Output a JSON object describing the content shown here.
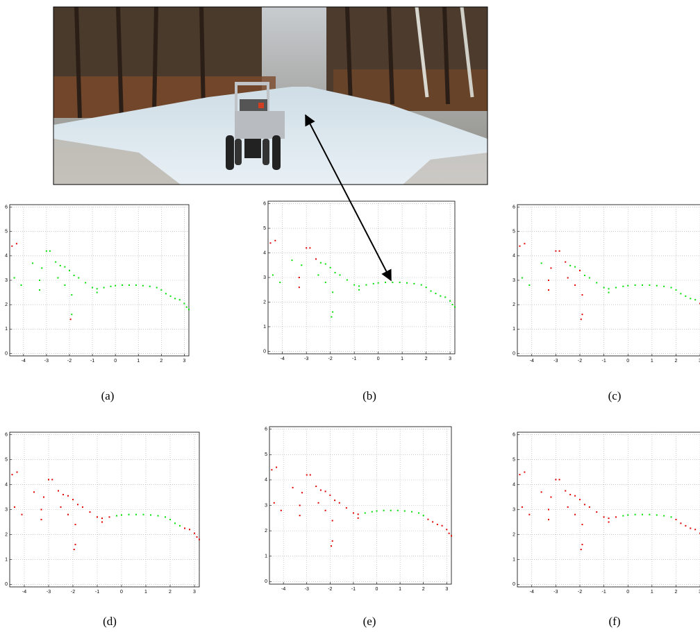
{
  "chart_data": [
    {
      "type": "scatter",
      "caption": "(a)",
      "xlim": [
        -4.6,
        3.2
      ],
      "ylim": [
        -0.1,
        6.1
      ],
      "xticks": [
        -4,
        -3,
        -2,
        -1,
        0,
        1,
        2,
        3
      ],
      "yticks": [
        0,
        1,
        2,
        3,
        4,
        5,
        6
      ],
      "grid": true,
      "series": [
        {
          "color": "#00e000",
          "x": [
            -4.4,
            -4.1,
            -3.6,
            -3.3,
            -3.2,
            -3.0,
            -2.85,
            -2.6,
            -2.4,
            -2.2,
            -2.0,
            -1.8,
            -1.6,
            -1.3,
            -1.0,
            -2.5,
            -2.2,
            -1.9,
            -3.3,
            -0.8,
            -1.9,
            -0.8,
            -0.5,
            -0.2,
            0,
            0.3,
            0.6,
            0.9,
            1.2,
            1.5,
            1.8,
            2.0,
            2.2,
            2.4,
            2.6,
            2.8,
            3.0,
            3.1,
            3.2
          ],
          "values": [
            3.1,
            2.8,
            3.7,
            3.0,
            3.5,
            4.2,
            4.2,
            3.75,
            3.6,
            3.55,
            3.4,
            3.2,
            3.1,
            2.9,
            2.7,
            3.1,
            2.8,
            1.6,
            2.6,
            2.5,
            2.4,
            2.65,
            2.7,
            2.75,
            2.78,
            2.8,
            2.8,
            2.8,
            2.78,
            2.75,
            2.7,
            2.6,
            2.45,
            2.35,
            2.25,
            2.2,
            2.05,
            1.9,
            1.8
          ]
        },
        {
          "color": "#e00000",
          "x": [
            -4.5,
            -4.3,
            -1.95
          ],
          "values": [
            4.4,
            4.5,
            1.4
          ]
        }
      ]
    },
    {
      "type": "scatter",
      "caption": "(b)",
      "xlim": [
        -4.6,
        3.2
      ],
      "ylim": [
        -0.1,
        6.1
      ],
      "xticks": [
        -4,
        -3,
        -2,
        -1,
        0,
        1,
        2,
        3
      ],
      "yticks": [
        0,
        1,
        2,
        3,
        4,
        5,
        6
      ],
      "grid": true,
      "series": [
        {
          "color": "#00e000",
          "x": [
            -4.4,
            -4.1,
            -3.6,
            -3.2,
            -2.4,
            -2.2,
            -2.0,
            -1.8,
            -1.6,
            -1.3,
            -1.0,
            -2.5,
            -2.2,
            -1.9,
            -1.95,
            -0.8,
            -1.9,
            -0.8,
            -0.5,
            -0.2,
            0,
            0.3,
            0.6,
            0.9,
            1.2,
            1.5,
            1.8,
            2.0,
            2.2,
            2.4,
            2.6,
            2.8,
            3.0,
            3.1,
            3.2
          ],
          "values": [
            3.1,
            2.8,
            3.7,
            3.5,
            3.6,
            3.55,
            3.4,
            3.2,
            3.1,
            2.9,
            2.7,
            3.1,
            2.8,
            1.6,
            1.4,
            2.5,
            2.4,
            2.65,
            2.7,
            2.75,
            2.78,
            2.8,
            2.8,
            2.8,
            2.78,
            2.75,
            2.7,
            2.6,
            2.45,
            2.35,
            2.25,
            2.2,
            2.05,
            1.9,
            1.8
          ]
        },
        {
          "color": "#e00000",
          "x": [
            -4.5,
            -4.3,
            -3.3,
            -3.0,
            -2.85,
            -2.6,
            -3.3
          ],
          "values": [
            4.4,
            4.5,
            3.0,
            4.2,
            4.2,
            3.75,
            2.6
          ]
        }
      ]
    },
    {
      "type": "scatter",
      "caption": "(c)",
      "xlim": [
        -4.6,
        3.2
      ],
      "ylim": [
        -0.1,
        6.1
      ],
      "xticks": [
        -4,
        -3,
        -2,
        -1,
        0,
        1,
        2,
        3
      ],
      "yticks": [
        0,
        1,
        2,
        3,
        4,
        5,
        6
      ],
      "grid": true,
      "series": [
        {
          "color": "#00e000",
          "x": [
            -4.4,
            -4.1,
            -3.6,
            -2.4,
            -2.2,
            -1.8,
            -1.6,
            -1.3,
            -1.0,
            -0.8,
            -0.8,
            -0.5,
            -0.2,
            0,
            0.3,
            0.6,
            0.9,
            1.2,
            1.5,
            1.8,
            2.0,
            2.2,
            2.4,
            2.6,
            2.8
          ],
          "values": [
            3.1,
            2.8,
            3.7,
            3.6,
            3.55,
            3.2,
            3.1,
            2.9,
            2.7,
            2.5,
            2.65,
            2.7,
            2.75,
            2.78,
            2.8,
            2.8,
            2.8,
            2.78,
            2.75,
            2.7,
            2.6,
            2.45,
            2.35,
            2.25,
            2.2
          ]
        },
        {
          "color": "#e00000",
          "x": [
            -4.5,
            -4.3,
            -3.3,
            -3.2,
            -3.0,
            -2.85,
            -2.6,
            -2.0,
            -2.5,
            -2.2,
            -1.9,
            -1.95,
            -3.3,
            -1.9,
            3.0,
            3.1,
            3.2
          ],
          "values": [
            4.4,
            4.5,
            3.0,
            3.5,
            4.2,
            4.2,
            3.75,
            3.4,
            3.1,
            2.8,
            1.6,
            1.4,
            2.6,
            2.4,
            2.05,
            1.9,
            1.8
          ]
        }
      ]
    },
    {
      "type": "scatter",
      "caption": "(d)",
      "xlim": [
        -4.6,
        3.2
      ],
      "ylim": [
        -0.1,
        6.1
      ],
      "xticks": [
        -4,
        -3,
        -2,
        -1,
        0,
        1,
        2,
        3
      ],
      "yticks": [
        0,
        1,
        2,
        3,
        4,
        5,
        6
      ],
      "grid": true,
      "series": [
        {
          "color": "#00e000",
          "x": [
            -0.2,
            0,
            0.3,
            0.6,
            0.9,
            1.2,
            1.5,
            1.8,
            2.0,
            2.2,
            2.4
          ],
          "values": [
            2.75,
            2.78,
            2.8,
            2.8,
            2.8,
            2.78,
            2.75,
            2.7,
            2.6,
            2.45,
            2.35
          ]
        },
        {
          "color": "#e00000",
          "x": [
            -4.5,
            -4.3,
            -4.4,
            -4.1,
            -3.6,
            -3.3,
            -3.2,
            -3.0,
            -2.85,
            -2.6,
            -2.4,
            -2.2,
            -2.0,
            -1.8,
            -1.6,
            -1.3,
            -1.0,
            -2.5,
            -2.2,
            -1.9,
            -1.95,
            -3.3,
            -0.8,
            -1.9,
            -0.8,
            -0.5,
            2.6,
            2.8,
            3.0,
            3.1,
            3.2
          ],
          "values": [
            4.4,
            4.5,
            3.1,
            2.8,
            3.7,
            3.0,
            3.5,
            4.2,
            4.2,
            3.75,
            3.6,
            3.55,
            3.4,
            3.2,
            3.1,
            2.9,
            2.7,
            3.1,
            2.8,
            1.6,
            1.4,
            2.6,
            2.5,
            2.4,
            2.65,
            2.7,
            2.25,
            2.2,
            2.05,
            1.9,
            1.8
          ]
        }
      ]
    },
    {
      "type": "scatter",
      "caption": "(e)",
      "xlim": [
        -4.6,
        3.2
      ],
      "ylim": [
        -0.1,
        6.1
      ],
      "xticks": [
        -4,
        -3,
        -2,
        -1,
        0,
        1,
        2,
        3
      ],
      "yticks": [
        0,
        1,
        2,
        3,
        4,
        5,
        6
      ],
      "grid": true,
      "series": [
        {
          "color": "#00e000",
          "x": [
            -0.5,
            -0.2,
            0,
            0.3,
            0.6,
            0.9,
            1.2,
            1.5,
            1.8,
            2.0
          ],
          "values": [
            2.7,
            2.75,
            2.78,
            2.8,
            2.8,
            2.8,
            2.78,
            2.75,
            2.7,
            2.6
          ]
        },
        {
          "color": "#e00000",
          "x": [
            -4.5,
            -4.3,
            -4.4,
            -4.1,
            -3.6,
            -3.3,
            -3.2,
            -3.0,
            -2.85,
            -2.6,
            -2.4,
            -2.2,
            -2.0,
            -1.8,
            -1.6,
            -1.3,
            -1.0,
            -2.5,
            -2.2,
            -1.9,
            -1.95,
            -3.3,
            -0.8,
            -1.9,
            -0.8,
            2.2,
            2.4,
            2.6,
            2.8,
            3.0,
            3.1,
            3.2
          ],
          "values": [
            4.4,
            4.5,
            3.1,
            2.8,
            3.7,
            3.0,
            3.5,
            4.2,
            4.2,
            3.75,
            3.6,
            3.55,
            3.4,
            3.2,
            3.1,
            2.9,
            2.7,
            3.1,
            2.8,
            1.6,
            1.4,
            2.6,
            2.5,
            2.4,
            2.65,
            2.45,
            2.35,
            2.25,
            2.2,
            2.05,
            1.9,
            1.8
          ]
        }
      ]
    },
    {
      "type": "scatter",
      "caption": "(f)",
      "xlim": [
        -4.6,
        3.2
      ],
      "ylim": [
        -0.1,
        6.1
      ],
      "xticks": [
        -4,
        -3,
        -2,
        -1,
        0,
        1,
        2,
        3
      ],
      "yticks": [
        0,
        1,
        2,
        3,
        4,
        5,
        6
      ],
      "grid": true,
      "series": [
        {
          "color": "#00e000",
          "x": [
            -0.2,
            0,
            0.3,
            0.6,
            0.9,
            1.2,
            1.5,
            1.8
          ],
          "values": [
            2.75,
            2.78,
            2.8,
            2.8,
            2.8,
            2.78,
            2.75,
            2.7
          ]
        },
        {
          "color": "#e00000",
          "x": [
            -4.5,
            -4.3,
            -4.4,
            -4.1,
            -3.6,
            -3.3,
            -3.2,
            -3.0,
            -2.85,
            -2.6,
            -2.4,
            -2.2,
            -2.0,
            -1.8,
            -1.6,
            -1.3,
            -1.0,
            -2.5,
            -2.2,
            -1.9,
            -1.95,
            -3.3,
            -0.8,
            -1.9,
            -0.8,
            -0.5,
            2.0,
            2.2,
            2.4,
            2.6,
            2.8,
            3.0,
            3.1,
            3.2
          ],
          "values": [
            4.4,
            4.5,
            3.1,
            2.8,
            3.7,
            3.0,
            3.5,
            4.2,
            4.2,
            3.75,
            3.6,
            3.55,
            3.4,
            3.2,
            3.1,
            2.9,
            2.7,
            3.1,
            2.8,
            1.6,
            1.4,
            2.6,
            2.5,
            2.4,
            2.65,
            2.7,
            2.6,
            2.45,
            2.35,
            2.25,
            2.2,
            2.05,
            1.9,
            1.8
          ]
        }
      ]
    }
  ]
}
